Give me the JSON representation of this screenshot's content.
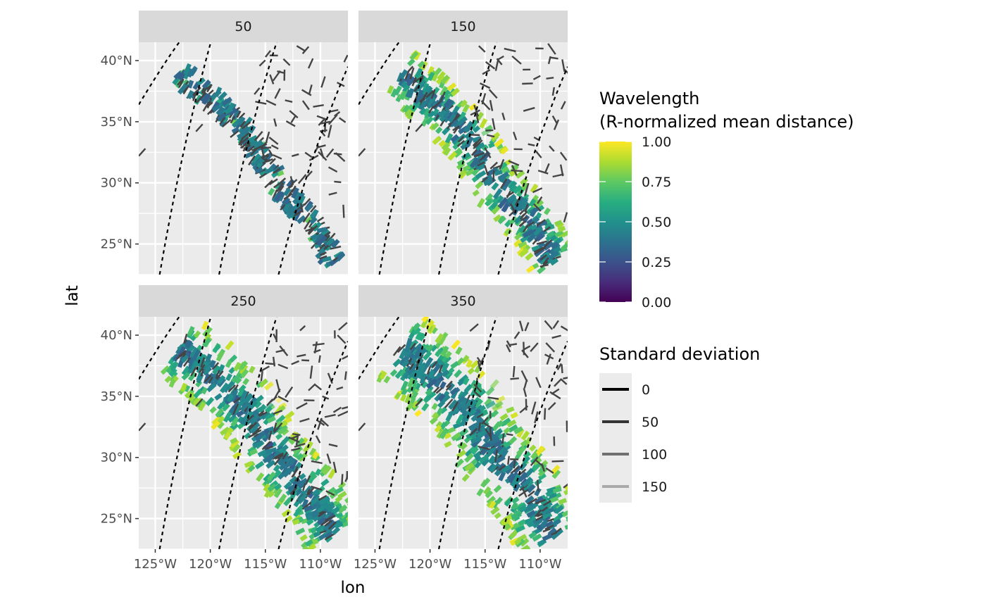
{
  "chart_data": {
    "type": "faceted-segment-map",
    "xlabel": "lon",
    "ylabel": "lat",
    "x_ticks": [
      "125°W",
      "120°W",
      "115°W",
      "110°W"
    ],
    "x_tick_values": [
      -125,
      -120,
      -115,
      -110
    ],
    "y_ticks": [
      "25°N",
      "30°N",
      "35°N",
      "40°N"
    ],
    "y_tick_values": [
      25,
      30,
      35,
      40
    ],
    "xlim": [
      -126.5,
      -107.5
    ],
    "ylim": [
      22.5,
      41.5
    ],
    "grid": true,
    "facets": [
      {
        "label": "50",
        "wavelength": 50
      },
      {
        "label": "150",
        "wavelength": 150
      },
      {
        "label": "250",
        "wavelength": 250
      },
      {
        "label": "350",
        "wavelength": 350
      }
    ],
    "projection_arcs": [
      [
        [
          -126.5,
          36.4
        ],
        [
          -123.8,
          40.4
        ],
        [
          -122.4,
          42.0
        ]
      ],
      [
        [
          -124.6,
          22.5
        ],
        [
          -122.6,
          33.0
        ],
        [
          -119.8,
          42.0
        ]
      ],
      [
        [
          -119.2,
          22.5
        ],
        [
          -117.0,
          33.0
        ],
        [
          -113.8,
          42.0
        ]
      ],
      [
        [
          -113.8,
          22.5
        ],
        [
          -111.3,
          31.5
        ],
        [
          -107.5,
          39.5
        ]
      ]
    ],
    "color_legend": {
      "title_line1": "Wavelength",
      "title_line2": "(R-normalized mean distance)",
      "palette": "viridis",
      "breaks": [
        "1.00",
        "0.75",
        "0.50",
        "0.25",
        "0.00"
      ],
      "break_values": [
        1.0,
        0.75,
        0.5,
        0.25,
        0.0
      ],
      "range": [
        0,
        1
      ]
    },
    "sd_legend": {
      "title": "Standard deviation",
      "items": [
        {
          "label": "0",
          "value": 0,
          "color": "#000000"
        },
        {
          "label": "50",
          "value": 50,
          "color": "#333333"
        },
        {
          "label": "100",
          "value": 100,
          "color": "#707070"
        },
        {
          "label": "150",
          "value": 150,
          "color": "#a9a9a9"
        }
      ]
    }
  },
  "colors": {
    "panel_bg": "#ebebeb",
    "grid": "#ffffff",
    "strip_bg": "#d9d9d9",
    "dark_segment": "#444444"
  }
}
